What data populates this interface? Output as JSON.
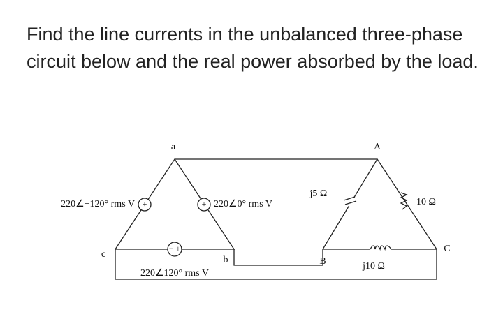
{
  "question": "Find the line currents in the unbalanced three-phase circuit below and the real power absorbed by the load.",
  "circuit": {
    "nodes": {
      "a": "a",
      "b": "b",
      "c": "c",
      "A": "A",
      "B": "B",
      "C": "C"
    },
    "sources": [
      "220∠−120° rms V",
      "220∠0° rms V",
      "220∠120° rms V"
    ],
    "impedances": [
      "−j5 Ω",
      "10 Ω",
      "j10 Ω"
    ]
  }
}
